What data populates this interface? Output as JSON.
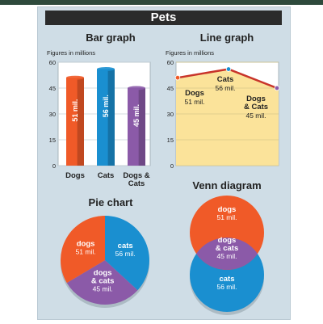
{
  "title": "Pets",
  "colors": {
    "dogs": "#f05a28",
    "cats": "#1a8fd0",
    "both": "#8b5aa8",
    "line_fill": "#fbe39a",
    "line": "#c8342a"
  },
  "chart_data": [
    {
      "type": "bar",
      "title": "Bar graph",
      "ylabel": "Figures in millions",
      "ylim": [
        0,
        60
      ],
      "yticks": [
        "0",
        "15",
        "30",
        "45",
        "60"
      ],
      "categories": [
        "Dogs",
        "Cats",
        "Dogs &\nCats"
      ],
      "values": [
        51,
        56,
        45
      ],
      "labels": [
        "51 mil.",
        "56 mil.",
        "45 mil."
      ],
      "grid": true
    },
    {
      "type": "line",
      "title": "Line graph",
      "ylabel": "Figures in millions",
      "ylim": [
        0,
        60
      ],
      "yticks": [
        "0",
        "15",
        "30",
        "45",
        "60"
      ],
      "points": [
        {
          "name": "Dogs",
          "value": 51,
          "label": "51 mil."
        },
        {
          "name": "Cats",
          "value": 56,
          "label": "56 mil."
        },
        {
          "name": "Dogs\n& Cats",
          "value": 45,
          "label": "45 mil."
        }
      ],
      "grid": true
    },
    {
      "type": "pie",
      "title": "Pie chart",
      "slices": [
        {
          "name": "dogs",
          "value": 51,
          "label": "51 mil."
        },
        {
          "name": "cats",
          "value": 56,
          "label": "56 mil."
        },
        {
          "name": "dogs\n& cats",
          "value": 45,
          "label": "45 mil."
        }
      ]
    },
    {
      "type": "venn",
      "title": "Venn diagram",
      "sets": [
        {
          "name": "dogs",
          "label": "51 mil."
        },
        {
          "name": "dogs\n& cats",
          "label": "45 mil."
        },
        {
          "name": "cats",
          "label": "56 mil."
        }
      ]
    }
  ]
}
